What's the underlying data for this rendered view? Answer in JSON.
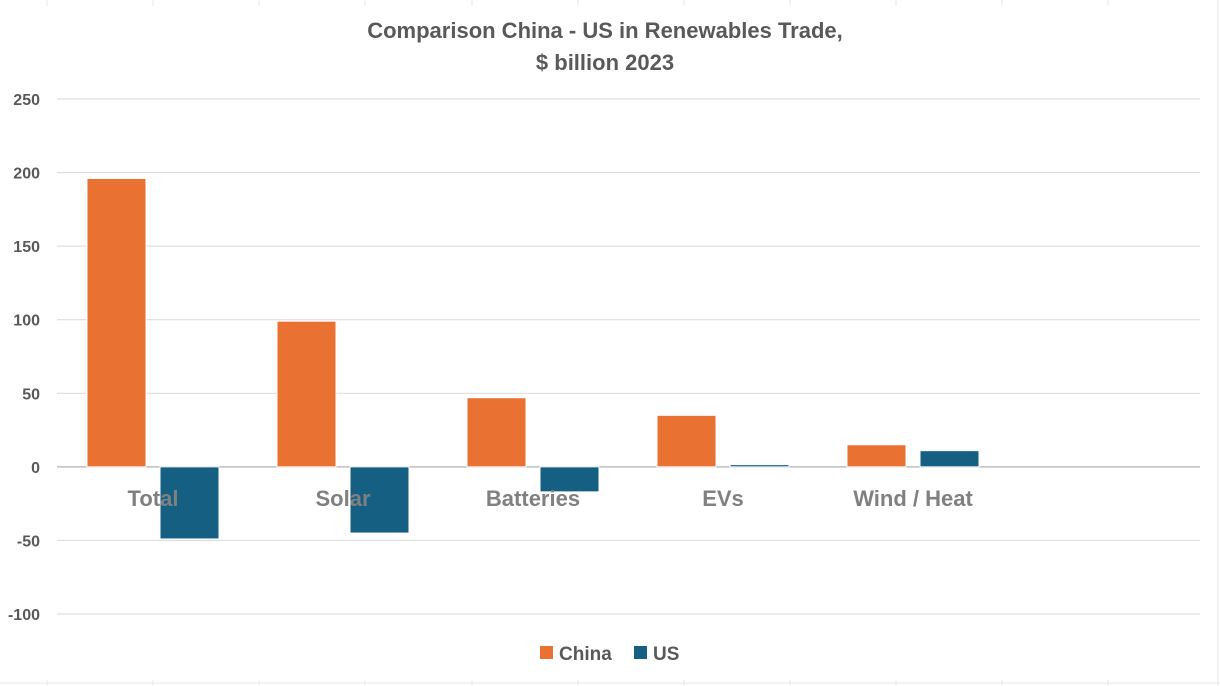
{
  "chart_data": {
    "type": "bar",
    "title": "Comparison China - US in Renewables Trade,",
    "subtitle": "$ billion 2023",
    "categories": [
      "Total",
      "Solar",
      "Batteries",
      "EVs",
      "Wind / Heat"
    ],
    "series": [
      {
        "name": "China",
        "values": [
          196,
          99,
          47,
          35,
          15
        ],
        "color": "#E97132"
      },
      {
        "name": "US",
        "values": [
          -49,
          -45,
          -17,
          1.5,
          11
        ],
        "color": "#156082"
      }
    ],
    "ylim": [
      -100,
      250
    ],
    "yticks": [
      "250",
      "200",
      "150",
      "100",
      "50",
      "0",
      "-50",
      "-100"
    ],
    "ytick_values": [
      250,
      200,
      150,
      100,
      50,
      0,
      -50,
      -100
    ],
    "xlabel": "",
    "ylabel": "",
    "grid": true,
    "legend_position": "bottom"
  },
  "colors": {
    "grid": "#d9d9d9",
    "sheet_grid": "#e7e7e7",
    "text": "#595959"
  }
}
